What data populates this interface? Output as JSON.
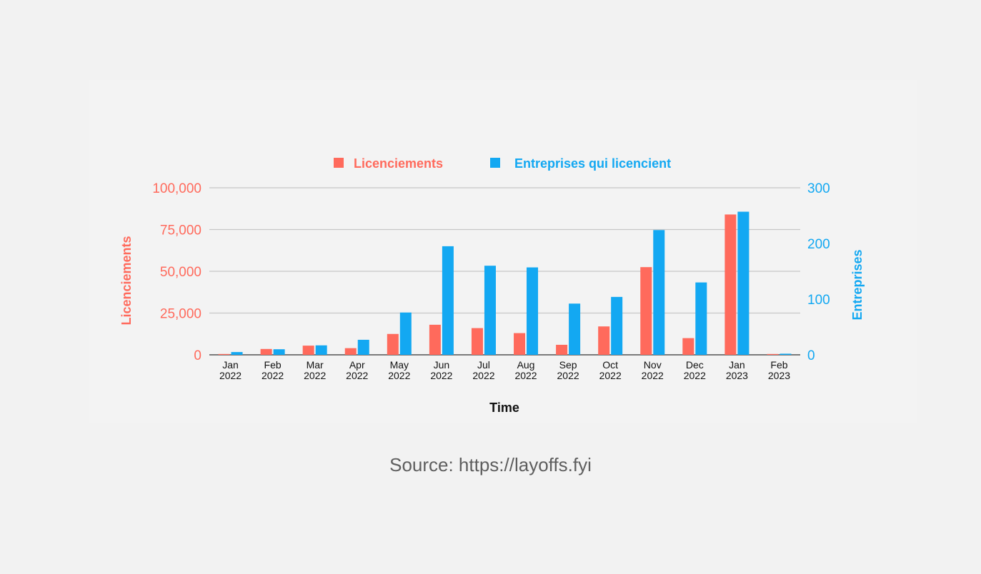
{
  "chart_data": {
    "type": "bar",
    "categories": [
      [
        "Jan",
        "2022"
      ],
      [
        "Feb",
        "2022"
      ],
      [
        "Mar",
        "2022"
      ],
      [
        "Apr",
        "2022"
      ],
      [
        "May",
        "2022"
      ],
      [
        "Jun",
        "2022"
      ],
      [
        "Jul",
        "2022"
      ],
      [
        "Aug",
        "2022"
      ],
      [
        "Sep",
        "2022"
      ],
      [
        "Oct",
        "2022"
      ],
      [
        "Nov",
        "2022"
      ],
      [
        "Dec",
        "2022"
      ],
      [
        "Jan",
        "2023"
      ],
      [
        "Feb",
        "2023"
      ]
    ],
    "series": [
      {
        "name": "Licenciements",
        "axis": "left",
        "color": "#ff6a5c",
        "values": [
          500,
          3500,
          5500,
          4000,
          12500,
          18000,
          16000,
          13000,
          6000,
          17000,
          52500,
          10000,
          84000,
          500
        ]
      },
      {
        "name": "Entreprises qui licencient",
        "axis": "right",
        "color": "#13a8f2",
        "values": [
          5,
          10,
          17,
          27,
          76,
          195,
          160,
          157,
          92,
          104,
          224,
          130,
          257,
          2
        ]
      }
    ],
    "xlabel": "Time",
    "ylabel_left": "Licenciements",
    "ylabel_right": "Entreprises",
    "ylim_left": [
      0,
      100000
    ],
    "ylim_right": [
      0,
      300
    ],
    "yticks_left": [
      "0",
      "25,000",
      "50,000",
      "75,000",
      "100,000"
    ],
    "yticks_right": [
      "0",
      "100",
      "200",
      "300"
    ],
    "grid": true,
    "legend_position": "top"
  },
  "source_text": "Source: https://layoffs.fyi"
}
